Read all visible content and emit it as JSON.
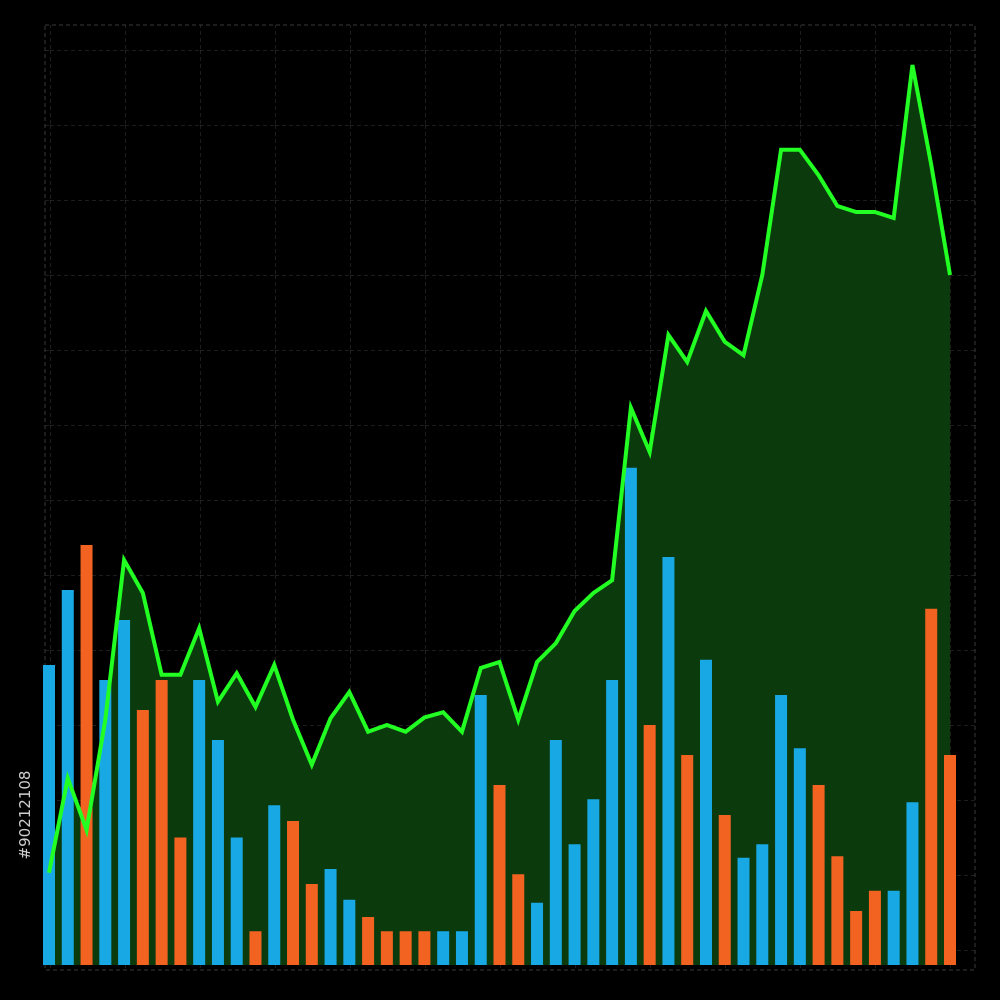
{
  "watermark": "#90212108",
  "chart_data": {
    "type": "combo",
    "categories": [
      null,
      null,
      null,
      null,
      null,
      null,
      null,
      null,
      null,
      null,
      null,
      null,
      null,
      null,
      null,
      null,
      null,
      null,
      null,
      null,
      null,
      null,
      null,
      null,
      null,
      null,
      null,
      null,
      null,
      null,
      null,
      null,
      null,
      null,
      null,
      null,
      null,
      null,
      null,
      null,
      null,
      null,
      null,
      null,
      null,
      null,
      null,
      null,
      null
    ],
    "ylim": [
      0,
      125
    ],
    "grid": true,
    "series": [
      {
        "type": "bar",
        "color": "#18a8e4",
        "values": [
          40,
          50,
          null,
          38,
          46,
          null,
          null,
          null,
          38,
          30,
          17,
          null,
          21.3,
          null,
          null,
          12.8,
          8.7,
          null,
          null,
          null,
          null,
          4.5,
          4.5,
          36,
          null,
          null,
          8.3,
          30,
          16.1,
          22.1,
          38,
          66.3,
          null,
          54.4,
          null,
          40.7,
          null,
          14.3,
          16.1,
          36,
          28.9,
          null,
          null,
          null,
          null,
          9.9,
          21.7,
          null,
          null
        ]
      },
      {
        "type": "bar",
        "color": "#f26322",
        "values": [
          null,
          null,
          56,
          null,
          null,
          34,
          38,
          17,
          null,
          null,
          null,
          4.5,
          null,
          19.2,
          10.8,
          null,
          null,
          6.4,
          4.5,
          4.5,
          4.5,
          null,
          null,
          null,
          24,
          12.1,
          null,
          null,
          null,
          null,
          null,
          null,
          32,
          null,
          28,
          null,
          20,
          null,
          null,
          null,
          null,
          24,
          14.5,
          7.2,
          9.9,
          null,
          null,
          47.5,
          28
        ]
      },
      {
        "type": "line",
        "color": "#22ff22",
        "area_color": "#0b3a0c",
        "values": [
          12.3,
          24.9,
          18,
          32.7,
          54,
          49.6,
          38.7,
          38.7,
          44.9,
          35.1,
          38.9,
          34.4,
          40,
          32.7,
          26.7,
          32.9,
          36.4,
          31.1,
          32,
          31.1,
          33,
          33.7,
          31.1,
          39.6,
          40.4,
          32.7,
          40.4,
          42.9,
          47.2,
          49.6,
          51.3,
          74.3,
          68.4,
          84,
          80.4,
          87.2,
          83.1,
          81.3,
          92,
          108.7,
          108.7,
          105.3,
          101.2,
          100.4,
          100.4,
          99.6,
          120,
          106.7,
          92
        ]
      }
    ]
  }
}
